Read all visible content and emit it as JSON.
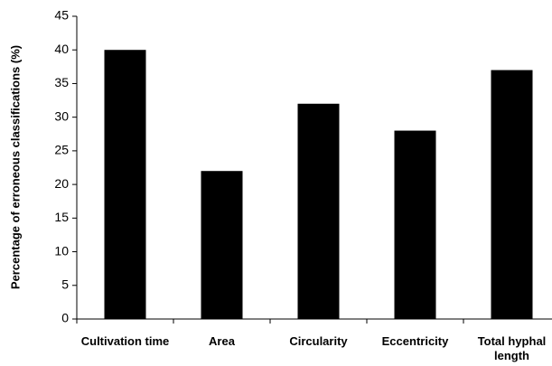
{
  "chart_data": {
    "type": "bar",
    "y_label": "Percentage of erroneous classifications (%)",
    "categories": [
      "Cultivation time",
      "Area",
      "Circularity",
      "Eccentricity",
      "Total hyphal length"
    ],
    "values": [
      40,
      22,
      32,
      28,
      37
    ],
    "color": "#000000",
    "ylim": [
      0,
      45
    ],
    "yticks": [
      0,
      5,
      10,
      15,
      20,
      25,
      30,
      35,
      40,
      45
    ],
    "grid": false
  }
}
